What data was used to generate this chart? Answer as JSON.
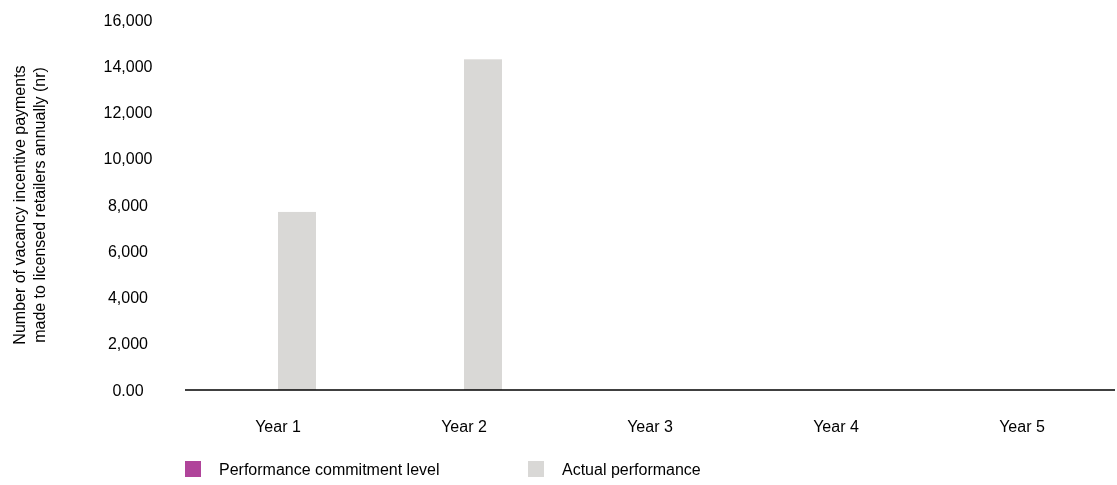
{
  "chart_data": {
    "type": "bar",
    "ylabel": "Number of vacancy incentive payments made to licensed retailers annually (nr)",
    "categories": [
      "Year 1",
      "Year 2",
      "Year 3",
      "Year 4",
      "Year 5"
    ],
    "series": [
      {
        "name": "Performance commitment level",
        "color": "#b0449a",
        "values": [
          null,
          null,
          null,
          null,
          null
        ]
      },
      {
        "name": "Actual performance",
        "color": "#d9d8d6",
        "values": [
          7700,
          14300,
          null,
          null,
          null
        ]
      }
    ],
    "ylim": [
      0,
      16000
    ],
    "yticks": [
      {
        "value": 0,
        "label": "0.00"
      },
      {
        "value": 2000,
        "label": "2,000"
      },
      {
        "value": 4000,
        "label": "4,000"
      },
      {
        "value": 6000,
        "label": "6,000"
      },
      {
        "value": 8000,
        "label": "8,000"
      },
      {
        "value": 10000,
        "label": "10,000"
      },
      {
        "value": 12000,
        "label": "12,000"
      },
      {
        "value": 14000,
        "label": "14,000"
      },
      {
        "value": 16000,
        "label": "16,000"
      }
    ],
    "grid": false,
    "legend": "bottom"
  }
}
